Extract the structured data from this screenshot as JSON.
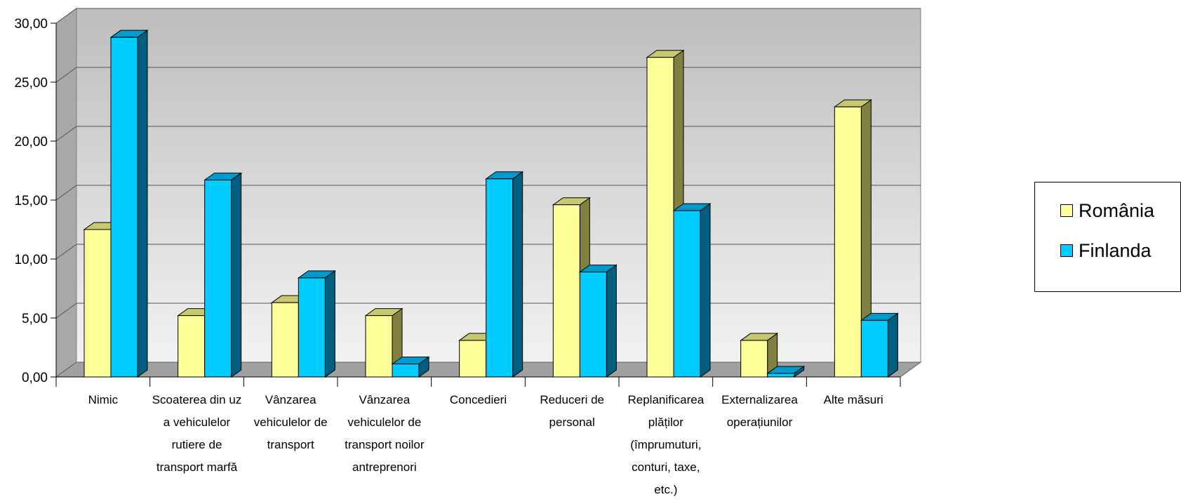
{
  "chart_data": {
    "type": "bar",
    "categories": [
      [
        "Nimic"
      ],
      [
        "Scoaterea din uz",
        "a vehiculelor",
        "rutiere de",
        "transport marfă"
      ],
      [
        "Vânzarea",
        "vehiculelor de",
        "transport"
      ],
      [
        "Vânzarea",
        "vehiculelor de",
        "transport noilor",
        "antreprenori"
      ],
      [
        "Concedieri"
      ],
      [
        "Reduceri de",
        "personal"
      ],
      [
        "Replanificarea",
        "plăților",
        "(împrumuturi,",
        "conturi, taxe,",
        "etc.)"
      ],
      [
        "Externalizarea",
        "operațiunilor"
      ],
      [
        "Alte măsuri"
      ]
    ],
    "series": [
      {
        "name": "România",
        "color": "#FFFF99",
        "side": "#808040",
        "top": "#C8C870",
        "values": [
          12.5,
          5.2,
          6.3,
          5.2,
          3.1,
          14.6,
          27.1,
          3.1,
          22.9
        ]
      },
      {
        "name": "Finlanda",
        "color": "#00CCFF",
        "side": "#005F80",
        "top": "#0099CC",
        "values": [
          28.8,
          16.7,
          8.4,
          1.1,
          16.8,
          8.9,
          14.1,
          0.3,
          4.8
        ]
      }
    ],
    "yticks": [
      "0,00",
      "5,00",
      "10,00",
      "15,00",
      "20,00",
      "25,00",
      "30,00"
    ],
    "ylim": [
      0,
      30
    ],
    "grid": true,
    "legend_position": "right"
  }
}
